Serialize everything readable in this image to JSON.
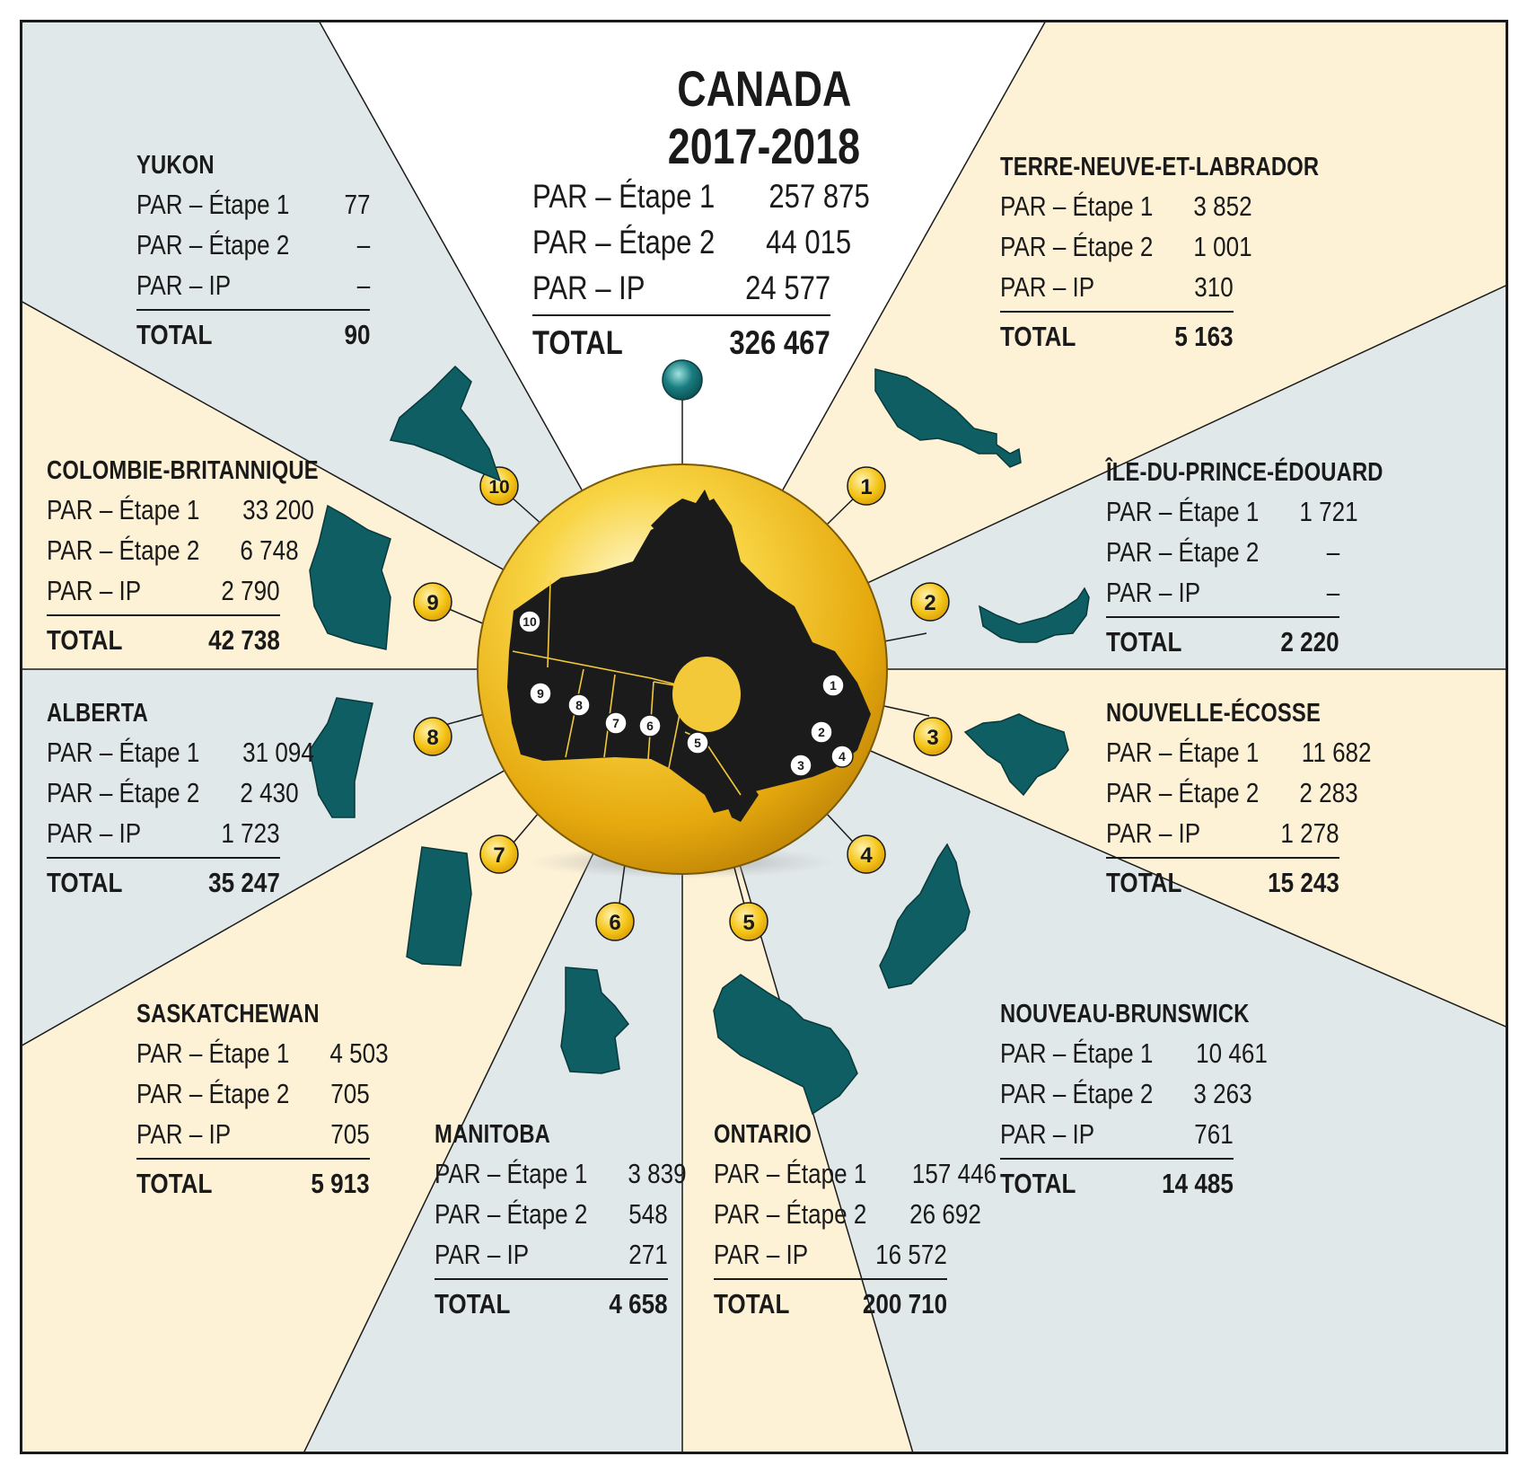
{
  "title": {
    "line1": "CANADA",
    "line2": "2017-2018"
  },
  "canada": {
    "rows": [
      {
        "label": "PAR – Étape 1",
        "value": "257 875"
      },
      {
        "label": "PAR – Étape 2",
        "value": "44 015"
      },
      {
        "label": "PAR – IP",
        "value": "24 577"
      }
    ],
    "total": {
      "label": "TOTAL",
      "value": "326 467"
    }
  },
  "regions": [
    {
      "number": "1",
      "name": "TERRE-NEUVE-ET-LABRADOR",
      "rows": [
        {
          "label": "PAR – Étape 1",
          "value": "3 852"
        },
        {
          "label": "PAR – Étape 2",
          "value": "1 001"
        },
        {
          "label": "PAR – IP",
          "value": "310"
        }
      ],
      "total": {
        "label": "TOTAL",
        "value": "5 163"
      }
    },
    {
      "number": "2",
      "name": "ÎLE-DU-PRINCE-ÉDOUARD",
      "rows": [
        {
          "label": "PAR – Étape 1",
          "value": "1 721"
        },
        {
          "label": "PAR – Étape 2",
          "value": "–"
        },
        {
          "label": "PAR – IP",
          "value": "–"
        }
      ],
      "total": {
        "label": "TOTAL",
        "value": "2 220"
      }
    },
    {
      "number": "3",
      "name": "NOUVELLE-ÉCOSSE",
      "rows": [
        {
          "label": "PAR – Étape 1",
          "value": "11 682"
        },
        {
          "label": "PAR – Étape 2",
          "value": "2 283"
        },
        {
          "label": "PAR – IP",
          "value": "1 278"
        }
      ],
      "total": {
        "label": "TOTAL",
        "value": "15 243"
      }
    },
    {
      "number": "4",
      "name": "NOUVEAU-BRUNSWICK",
      "rows": [
        {
          "label": "PAR – Étape 1",
          "value": "10 461"
        },
        {
          "label": "PAR – Étape 2",
          "value": "3 263"
        },
        {
          "label": "PAR – IP",
          "value": "761"
        }
      ],
      "total": {
        "label": "TOTAL",
        "value": "14 485"
      }
    },
    {
      "number": "5",
      "name": "ONTARIO",
      "rows": [
        {
          "label": "PAR – Étape 1",
          "value": "157 446"
        },
        {
          "label": "PAR – Étape 2",
          "value": "26 692"
        },
        {
          "label": "PAR – IP",
          "value": "16 572"
        }
      ],
      "total": {
        "label": "TOTAL",
        "value": "200 710"
      }
    },
    {
      "number": "6",
      "name": "MANITOBA",
      "rows": [
        {
          "label": "PAR – Étape 1",
          "value": "3 839"
        },
        {
          "label": "PAR – Étape 2",
          "value": "548"
        },
        {
          "label": "PAR – IP",
          "value": "271"
        }
      ],
      "total": {
        "label": "TOTAL",
        "value": "4 658"
      }
    },
    {
      "number": "7",
      "name": "SASKATCHEWAN",
      "rows": [
        {
          "label": "PAR – Étape 1",
          "value": "4 503"
        },
        {
          "label": "PAR – Étape 2",
          "value": "705"
        },
        {
          "label": "PAR – IP",
          "value": "705"
        }
      ],
      "total": {
        "label": "TOTAL",
        "value": "5 913"
      }
    },
    {
      "number": "8",
      "name": "ALBERTA",
      "rows": [
        {
          "label": "PAR – Étape 1",
          "value": "31 094"
        },
        {
          "label": "PAR – Étape 2",
          "value": "2 430"
        },
        {
          "label": "PAR – IP",
          "value": "1 723"
        }
      ],
      "total": {
        "label": "TOTAL",
        "value": "35 247"
      }
    },
    {
      "number": "9",
      "name": "COLOMBIE-BRITANNIQUE",
      "rows": [
        {
          "label": "PAR – Étape 1",
          "value": "33 200"
        },
        {
          "label": "PAR – Étape 2",
          "value": "6 748"
        },
        {
          "label": "PAR – IP",
          "value": "2 790"
        }
      ],
      "total": {
        "label": "TOTAL",
        "value": "42 738"
      }
    },
    {
      "number": "10",
      "name": "YUKON",
      "rows": [
        {
          "label": "PAR – Étape 1",
          "value": "77"
        },
        {
          "label": "PAR – Étape 2",
          "value": "–"
        },
        {
          "label": "PAR – IP",
          "value": "–"
        }
      ],
      "total": {
        "label": "TOTAL",
        "value": "90"
      }
    }
  ],
  "colors": {
    "grey_sector": "#e1e8ea",
    "cream_sector": "#fdf1d6",
    "province_teal": "#0e5e63",
    "globe_gold": "#f2bd1a",
    "badge_gold": "#f5c518",
    "map_black": "#1b1b1b"
  },
  "icons": {
    "globe": "canada-globe-map",
    "pin": "teal-pin-head",
    "province_shapes": "province-silhouette-icons"
  }
}
